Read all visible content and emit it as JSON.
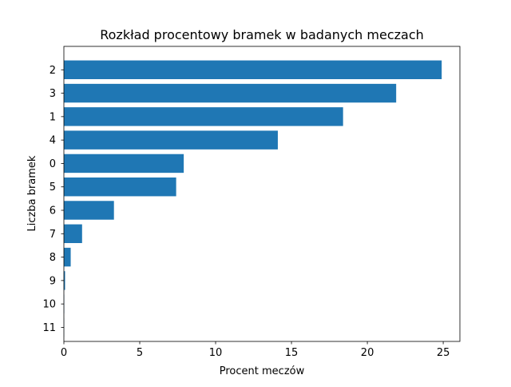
{
  "chart_data": {
    "type": "bar",
    "orientation": "horizontal",
    "title": "Rozkład procentowy bramek w badanych meczach",
    "xlabel": "Procent meczów",
    "ylabel": "Liczba bramek",
    "categories": [
      "2",
      "3",
      "1",
      "4",
      "0",
      "5",
      "6",
      "7",
      "8",
      "9",
      "10",
      "11"
    ],
    "values": [
      24.9,
      21.9,
      18.4,
      14.1,
      7.9,
      7.4,
      3.3,
      1.2,
      0.45,
      0.08,
      0.02,
      0.01
    ],
    "xlim": [
      0,
      26.1
    ],
    "xticks": [
      "0",
      "5",
      "10",
      "15",
      "20",
      "25"
    ],
    "grid": false,
    "legend": "none",
    "bar_color": "#1f77b4"
  }
}
